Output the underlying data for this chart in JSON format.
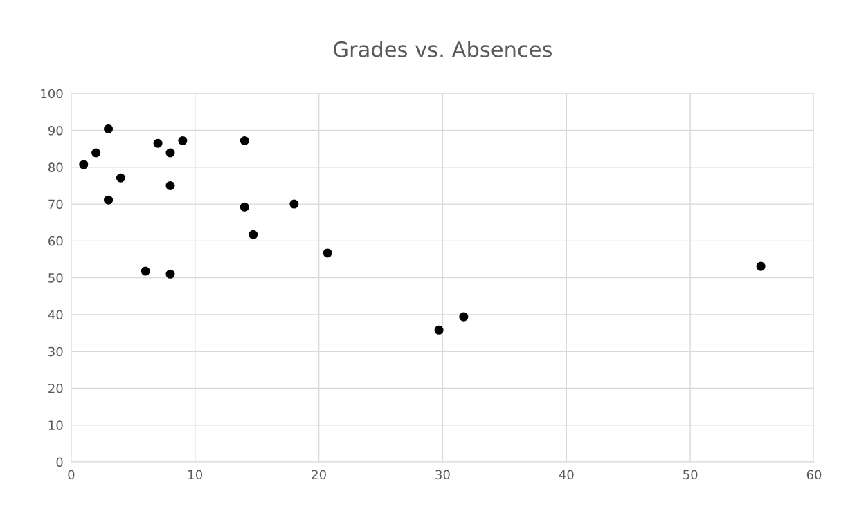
{
  "chart_data": {
    "type": "scatter",
    "title": "Grades vs. Absences",
    "x": [
      1,
      2,
      3,
      3,
      4,
      6,
      7,
      8,
      8,
      8,
      9,
      14,
      14,
      14.7,
      18,
      20.7,
      29.7,
      31.7,
      55.7
    ],
    "values": [
      80.7,
      83.9,
      90.4,
      71.1,
      77.1,
      51.8,
      86.5,
      83.9,
      75,
      51,
      87.2,
      87.2,
      69.2,
      61.7,
      70,
      56.7,
      35.8,
      39.4,
      53.1
    ],
    "color": "#000000",
    "marker": "circle",
    "xlim": [
      0,
      60
    ],
    "xticks": [
      0,
      10,
      20,
      30,
      40,
      50,
      60
    ],
    "ylim": [
      0,
      100
    ],
    "yticks": [
      0,
      10,
      20,
      30,
      40,
      50,
      60,
      70,
      80,
      90,
      100
    ],
    "grid": true
  }
}
